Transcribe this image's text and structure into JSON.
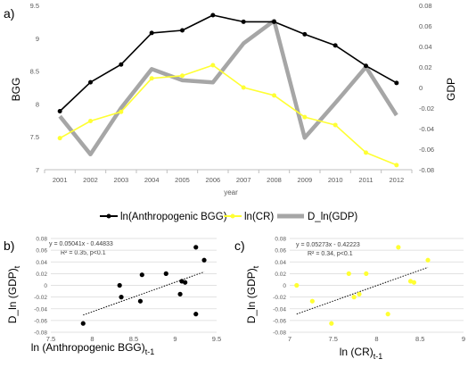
{
  "colors": {
    "bgg": "#000000",
    "cr": "#ffff33",
    "gdp": "#a6a6a6",
    "trend": "#000000",
    "grid": "#d9d9d9",
    "axis": "#bfbfbf"
  },
  "chart_data": [
    {
      "panel_label": "a)",
      "type": "line",
      "x": [
        "2001",
        "2002",
        "2003",
        "2004",
        "2005",
        "2006",
        "2007",
        "2008",
        "2009",
        "2010",
        "2011",
        "2012"
      ],
      "xlabel": "year",
      "ylabel": "BGG",
      "y2label": "GDP",
      "ylim": [
        7,
        9.5
      ],
      "yticks": [
        "7",
        "7.5",
        "8",
        "8.5",
        "9",
        "9.5"
      ],
      "y2lim": [
        -0.08,
        0.08
      ],
      "y2ticks": [
        "-0.08",
        "-0.06",
        "-0.04",
        "-0.02",
        "0",
        "0.02",
        "0.04",
        "0.06",
        "0.08"
      ],
      "grid": false,
      "legend_position": "bottom",
      "series": [
        {
          "name": "ln(Anthropogenic BGG)",
          "axis": "left",
          "marker": true,
          "values": [
            7.89,
            8.33,
            8.6,
            9.08,
            9.12,
            9.35,
            9.25,
            9.25,
            9.06,
            8.89,
            8.58,
            8.32
          ]
        },
        {
          "name": "ln(CR)",
          "axis": "left",
          "marker": true,
          "values": [
            7.48,
            7.74,
            7.88,
            8.39,
            8.43,
            8.59,
            8.25,
            8.13,
            7.8,
            7.68,
            7.26,
            7.07
          ]
        },
        {
          "name": "D_ln(GDP)",
          "axis": "right",
          "marker": false,
          "values": [
            -0.028,
            -0.065,
            -0.02,
            0.018,
            0.007,
            0.005,
            0.043,
            0.065,
            -0.049,
            -0.015,
            0.02,
            -0.027
          ]
        }
      ]
    },
    {
      "panel_label": "b)",
      "type": "scatter",
      "xlabel_main": "ln (Anthropogenic BGG)",
      "xlabel_sub": "t-1",
      "ylabel_main": "D_ln (GDP)",
      "ylabel_sub": "t",
      "xlim": [
        7.5,
        9.5
      ],
      "xticks": [
        "7.5",
        "8",
        "8.5",
        "9",
        "9.5"
      ],
      "ylim": [
        -0.08,
        0.08
      ],
      "yticks": [
        "-0.08",
        "-0.06",
        "-0.04",
        "-0.02",
        "0",
        "0.02",
        "0.04",
        "0.06",
        "0.08"
      ],
      "grid": true,
      "equation": "y = 0.05041x - 0.44833",
      "stats": "R² = 0.35, p<0.1",
      "trend": {
        "slope": 0.05041,
        "intercept": -0.44833
      },
      "x": [
        7.89,
        8.33,
        8.35,
        8.6,
        9.08,
        9.12,
        9.35,
        9.25,
        9.25,
        9.06,
        8.89,
        8.58
      ],
      "y": [
        -0.065,
        0.0,
        -0.02,
        0.018,
        0.007,
        0.005,
        0.043,
        0.065,
        -0.049,
        -0.015,
        0.02,
        -0.027
      ]
    },
    {
      "panel_label": "c)",
      "type": "scatter",
      "xlabel_main": "ln (CR)",
      "xlabel_sub": "t-1",
      "ylabel_main": "D_ln (GDP)",
      "ylabel_sub": "t",
      "xlim": [
        7,
        9
      ],
      "xticks": [
        "7",
        "7.5",
        "8",
        "8.5",
        "9"
      ],
      "ylim": [
        -0.08,
        0.08
      ],
      "yticks": [
        "-0.08",
        "-0.06",
        "-0.04",
        "-0.02",
        "0",
        "0.02",
        "0.04",
        "0.06",
        "0.08"
      ],
      "grid": true,
      "equation": "y = 0.05273x - 0.42223",
      "stats": "R² = 0.34, p<0.1",
      "trend": {
        "slope": 0.05273,
        "intercept": -0.42223
      },
      "x": [
        7.08,
        7.26,
        7.48,
        7.68,
        7.74,
        7.8,
        7.88,
        8.13,
        8.25,
        8.39,
        8.43,
        8.59
      ],
      "y": [
        0.0,
        -0.027,
        -0.065,
        0.02,
        -0.02,
        -0.015,
        0.02,
        -0.049,
        0.065,
        0.007,
        0.005,
        0.043
      ]
    }
  ]
}
